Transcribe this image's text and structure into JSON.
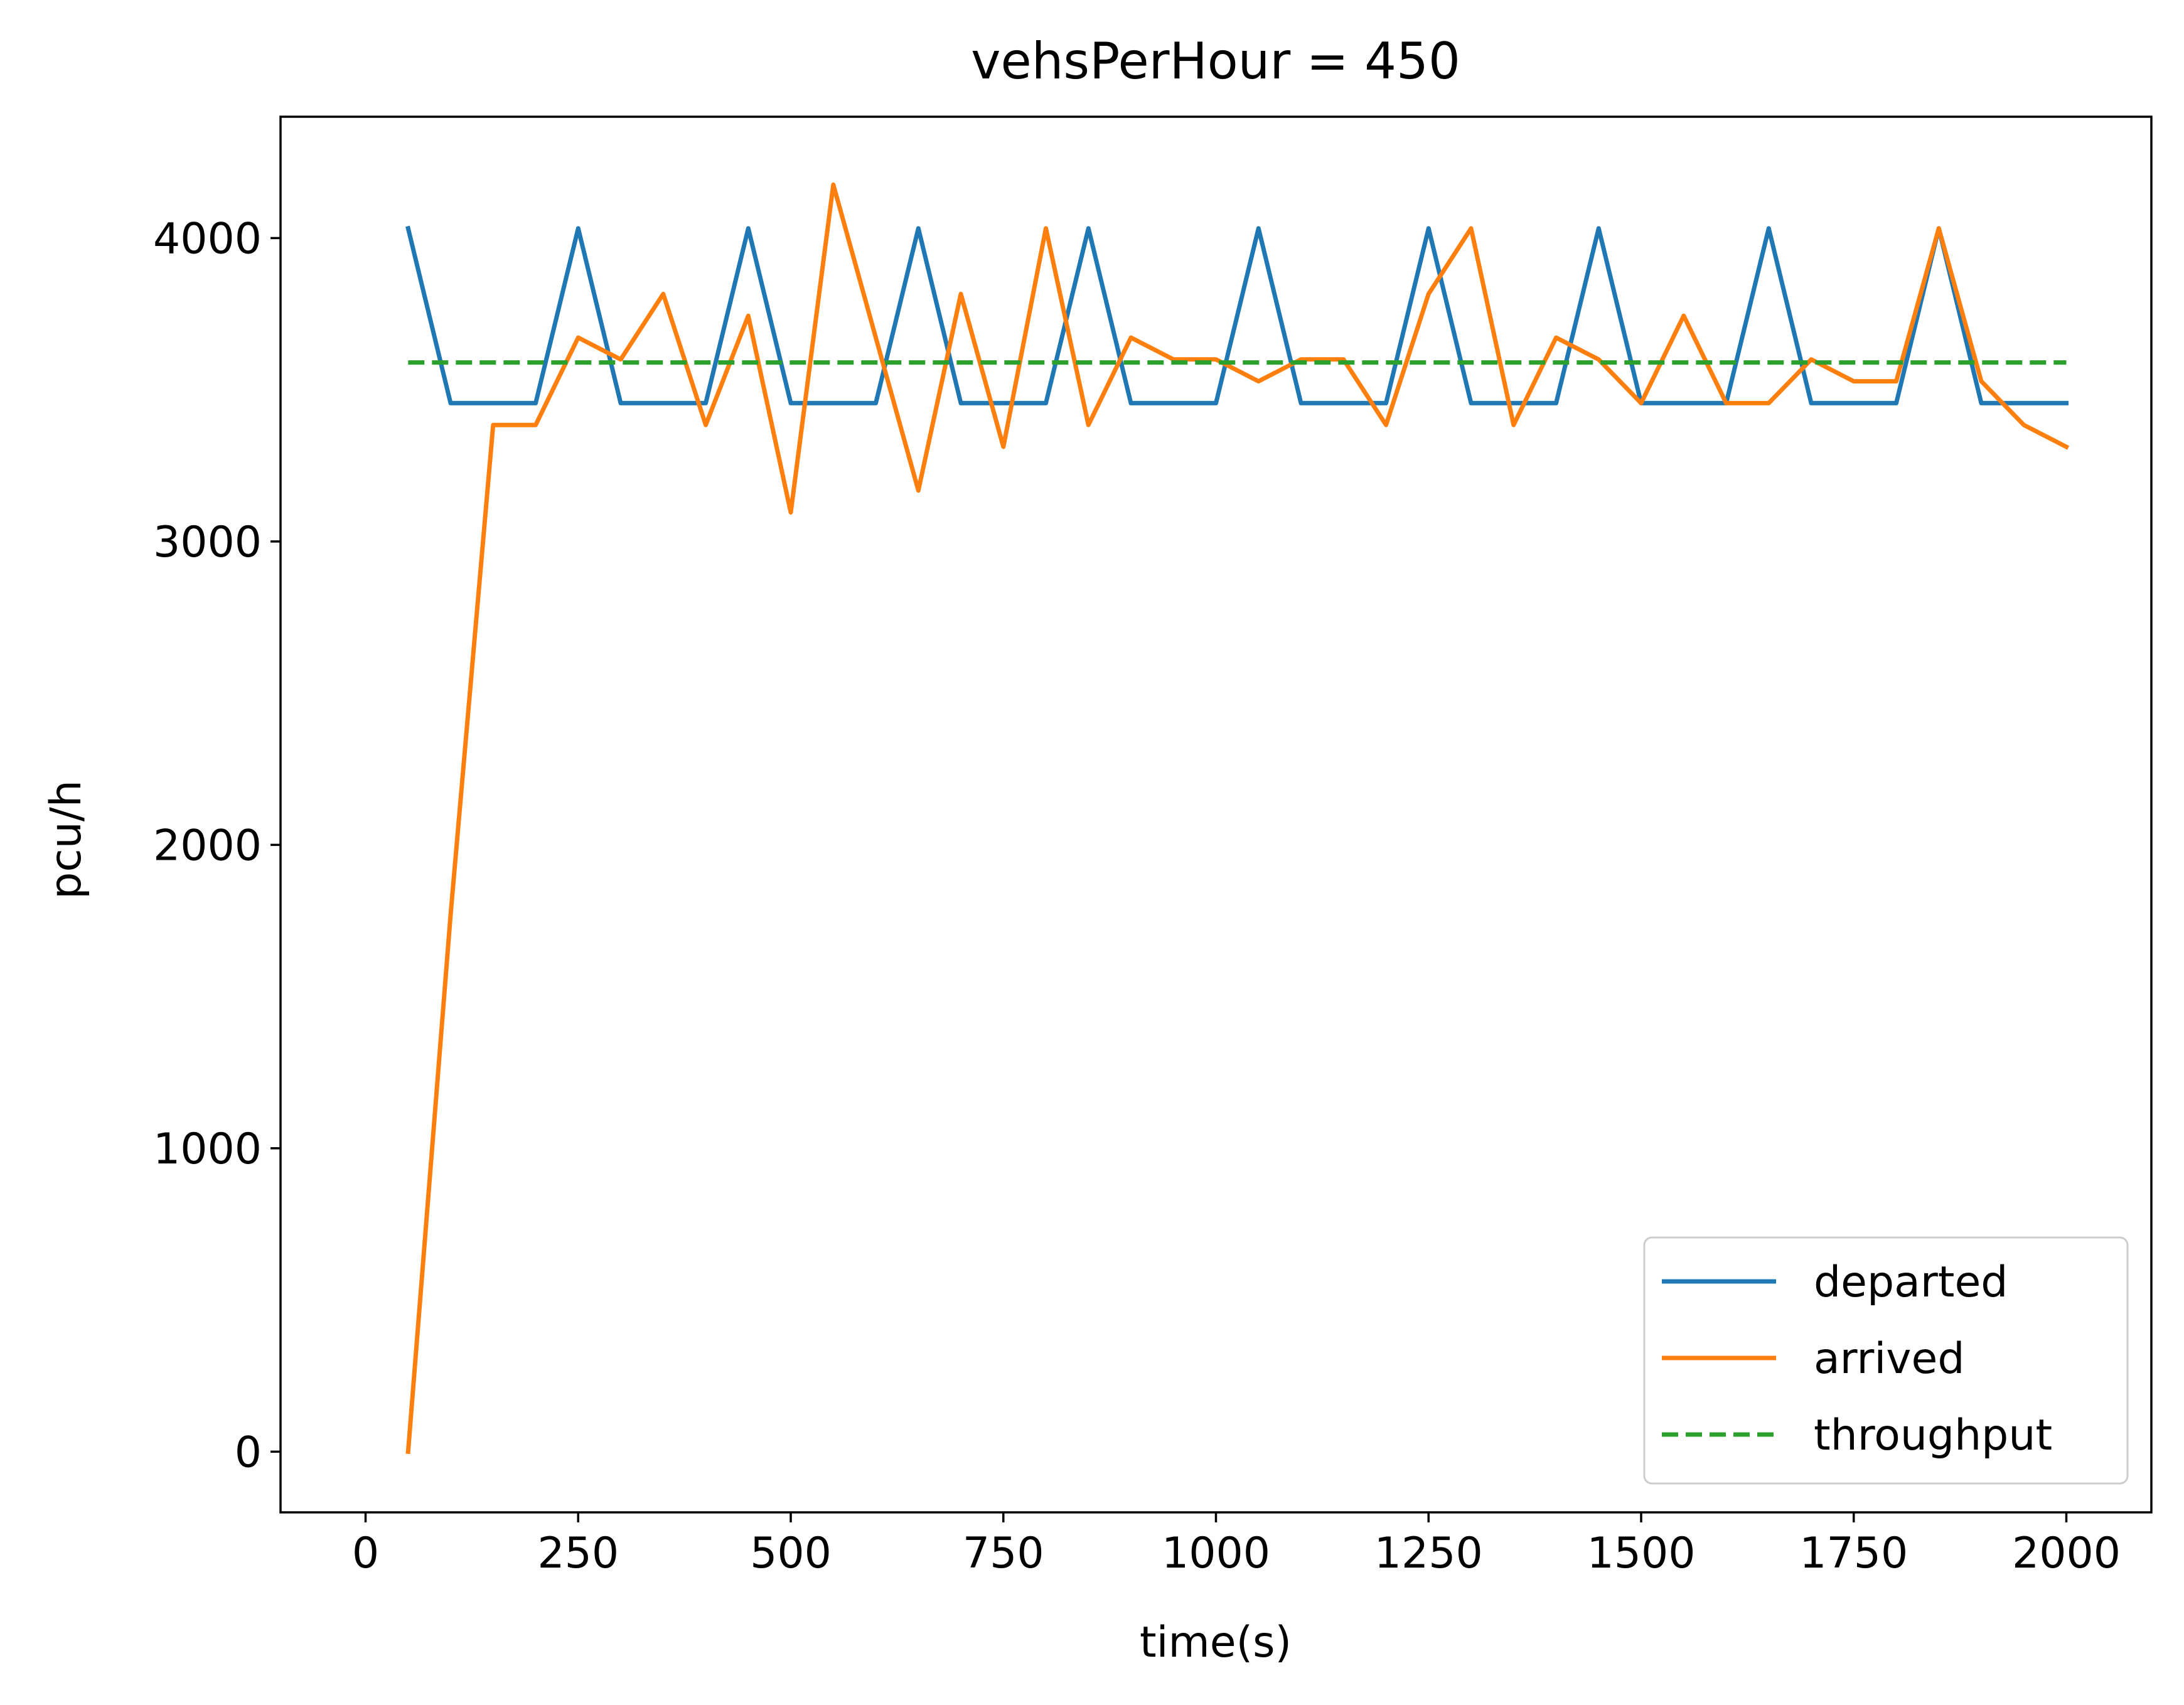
{
  "chart_data": {
    "type": "line",
    "title": "vehsPerHour = 450",
    "xlabel": "time(s)",
    "ylabel": "pcu/h",
    "xlim": [
      -100,
      2100
    ],
    "ylim": [
      -200,
      4400
    ],
    "xticks": [
      0,
      250,
      500,
      750,
      1000,
      1250,
      1500,
      1750,
      2000
    ],
    "xtick_labels": [
      "0",
      "250",
      "500",
      "750",
      "1000",
      "1250",
      "1500",
      "1750",
      "2000"
    ],
    "yticks": [
      0,
      1000,
      2000,
      3000,
      4000
    ],
    "ytick_labels": [
      "0",
      "1000",
      "2000",
      "3000",
      "4000"
    ],
    "grid": false,
    "legend_position": "bottom-right",
    "x": [
      50,
      100,
      150,
      200,
      250,
      300,
      350,
      400,
      450,
      500,
      550,
      600,
      650,
      700,
      750,
      800,
      850,
      900,
      950,
      1000,
      1050,
      1100,
      1150,
      1200,
      1250,
      1300,
      1350,
      1400,
      1450,
      1500,
      1550,
      1600,
      1650,
      1700,
      1750,
      1800,
      1850,
      1900,
      1950,
      2000
    ],
    "series": [
      {
        "name": "departed",
        "color": "#1f77b4",
        "style": "solid",
        "values": [
          4032,
          3456,
          3456,
          3456,
          4032,
          3456,
          3456,
          3456,
          4032,
          3456,
          3456,
          3456,
          4032,
          3456,
          3456,
          3456,
          4032,
          3456,
          3456,
          3456,
          4032,
          3456,
          3456,
          3456,
          4032,
          3456,
          3456,
          3456,
          4032,
          3456,
          3456,
          3456,
          4032,
          3456,
          3456,
          3456,
          4032,
          3456,
          3456,
          3456
        ]
      },
      {
        "name": "arrived",
        "color": "#ff7f0e",
        "style": "solid",
        "values": [
          0,
          1770,
          3384,
          3384,
          3672,
          3600,
          3816,
          3384,
          3744,
          3096,
          4176,
          3672,
          3168,
          3816,
          3312,
          4032,
          3384,
          3672,
          3600,
          3600,
          3528,
          3600,
          3600,
          3384,
          3816,
          4032,
          3384,
          3672,
          3600,
          3456,
          3744,
          3456,
          3456,
          3600,
          3528,
          3528,
          4032,
          3528,
          3384,
          3312
        ]
      },
      {
        "name": "throughput",
        "color": "#2ca02c",
        "style": "dashed",
        "values": [
          3590,
          3590,
          3590,
          3590,
          3590,
          3590,
          3590,
          3590,
          3590,
          3590,
          3590,
          3590,
          3590,
          3590,
          3590,
          3590,
          3590,
          3590,
          3590,
          3590,
          3590,
          3590,
          3590,
          3590,
          3590,
          3590,
          3590,
          3590,
          3590,
          3590,
          3590,
          3590,
          3590,
          3590,
          3590,
          3590,
          3590,
          3590,
          3590,
          3590
        ]
      }
    ]
  }
}
